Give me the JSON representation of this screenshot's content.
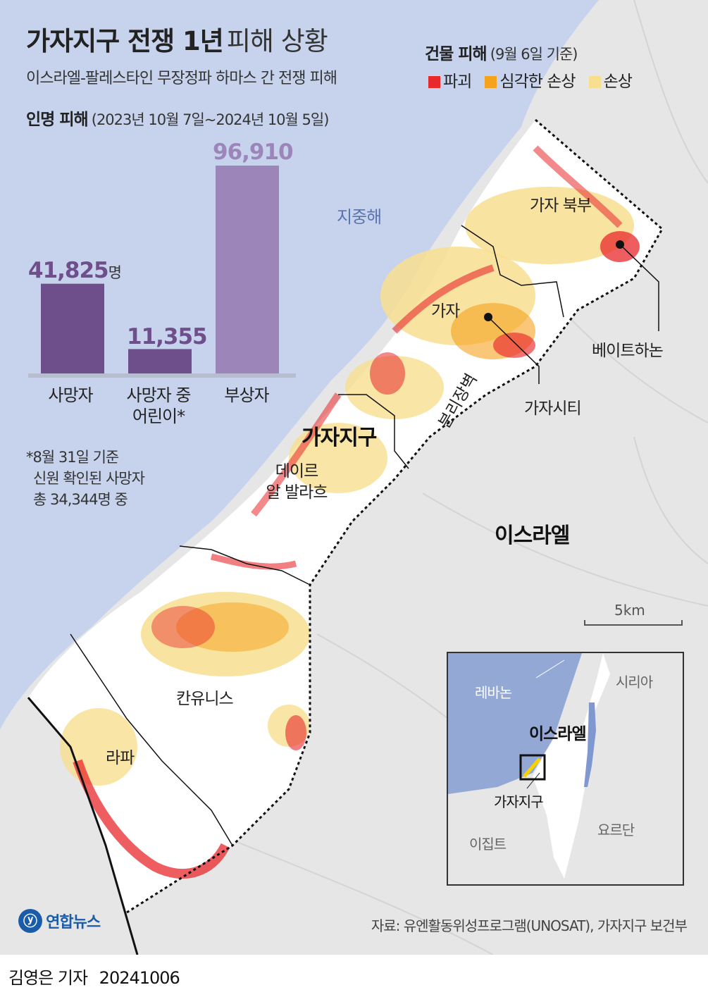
{
  "header": {
    "title_bold": "가자지구 전쟁 1년",
    "title_light": "피해 상황",
    "subtitle": "이스라엘-팔레스타인 무장정파 하마스 간 전쟁 피해"
  },
  "casualties": {
    "heading": "인명 피해",
    "period": "(2023년 10월 7일~2024년 10월 5일)",
    "unit": "명",
    "bars": [
      {
        "label_line1": "사망자",
        "label_line2": "",
        "value": 41825,
        "value_text": "41,825"
      },
      {
        "label_line1": "사망자 중",
        "label_line2": "어린이*",
        "value": 11355,
        "value_text": "11,355"
      },
      {
        "label_line1": "부상자",
        "label_line2": "",
        "value": 96910,
        "value_text": "96,910"
      }
    ],
    "note_line1": "*8월 31일 기준",
    "note_line2": "신원 확인된 사망자",
    "note_line3": "총 34,344명 중"
  },
  "chart_data": {
    "type": "bar",
    "title": "인명 피해",
    "categories": [
      "사망자",
      "사망자 중 어린이*",
      "부상자"
    ],
    "values": [
      41825,
      11355,
      96910
    ]
  },
  "legend": {
    "heading": "건물 피해",
    "date": "(9월 6일 기준)",
    "items": [
      {
        "label": "파괴",
        "color": "#e8282b"
      },
      {
        "label": "심각한 손상",
        "color": "#f5a21c"
      },
      {
        "label": "손상",
        "color": "#f8de8f"
      }
    ]
  },
  "colors": {
    "sea": "#c7d3ec",
    "land": "#e6e6e6",
    "bar_dark": "#6e4e8b",
    "bar_light": "#9c86b9",
    "destroyed": "#e8282b",
    "severe": "#f5a21c",
    "damaged": "#f8de8f"
  },
  "map": {
    "sea_label": "지중해",
    "gaza_strip_label": "가자지구",
    "israel_label": "이스라엘",
    "separation_wall_label": "분리장벽",
    "places": {
      "north_gaza": "가자 북부",
      "gaza": "가자",
      "beit_hanoun": "베이트하논",
      "gaza_city": "가자시티",
      "deir_line1": "데이르",
      "deir_line2": "알 발라흐",
      "khan_younis": "칸유니스",
      "rafah": "라파"
    },
    "scale_label": "5km"
  },
  "inset": {
    "lebanon": "레바논",
    "syria": "시리아",
    "israel": "이스라엘",
    "gaza": "가자지구",
    "jordan": "요르단",
    "egypt": "이집트"
  },
  "source": "자료: 유엔활동위성프로그램(UNOSAT), 가자지구 보건부",
  "logo_text": "연합뉴스",
  "footer": {
    "reporter": "김영은 기자",
    "date": "20241006"
  }
}
